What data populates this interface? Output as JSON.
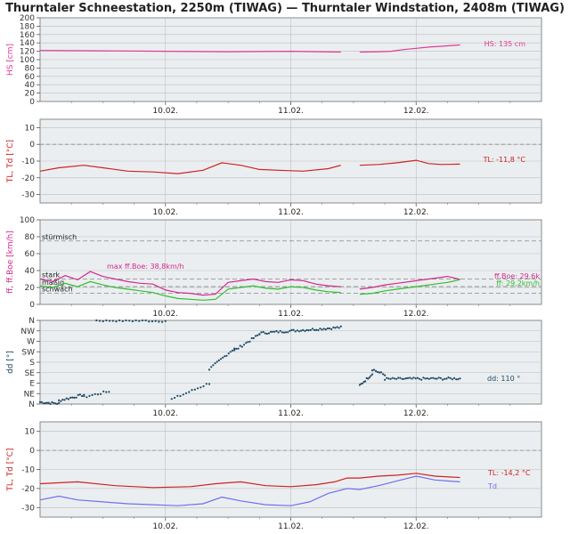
{
  "title": "Thurntaler Schneestation, 2250m (TIWAG) — Thurntaler Windstation, 2408m (TIWAG)",
  "colors": {
    "panel_bg": "#ebeef0",
    "grid": "#bdbdbd",
    "snow": "#e0399a",
    "temp": "#cc2222",
    "dew": "#6f6ff0",
    "wind_gust": "#d42a8c",
    "wind_mean": "#2fbf2f",
    "wind_dir": "#1c4a66"
  },
  "chart_data": [
    {
      "id": "snow",
      "type": "line",
      "ylabel": "HS [cm]",
      "ylim": [
        0,
        200
      ],
      "yticks": [
        0,
        20,
        40,
        60,
        80,
        100,
        120,
        140,
        160,
        180,
        200
      ],
      "xlim": [
        0,
        4
      ],
      "xticks": [
        {
          "x": 1,
          "label": "10.02."
        },
        {
          "x": 2,
          "label": "11.02."
        },
        {
          "x": 3,
          "label": "12.02."
        }
      ],
      "series": [
        {
          "name": "HS",
          "color": "#e0399a",
          "x": [
            0,
            0.5,
            1.0,
            1.5,
            2.0,
            2.4,
            2.45,
            2.55,
            2.7,
            2.8,
            2.9,
            3.0,
            3.1,
            3.2,
            3.3,
            3.35
          ],
          "y": [
            122,
            121,
            120,
            119,
            120,
            118,
            null,
            118,
            119,
            120,
            124,
            127,
            130,
            132,
            134,
            135
          ]
        }
      ],
      "annotations": [
        {
          "text": "HS: 135 cm",
          "color": "#e0399a"
        }
      ]
    },
    {
      "id": "temp1",
      "type": "line",
      "ylabel": "TL, Td [°C]",
      "ylim": [
        -35,
        15
      ],
      "yticks": [
        -30,
        -20,
        -10,
        0,
        10
      ],
      "xlim": [
        0,
        4
      ],
      "xticks": [
        {
          "x": 1,
          "label": "10.02."
        },
        {
          "x": 2,
          "label": "11.02."
        },
        {
          "x": 3,
          "label": "12.02."
        }
      ],
      "series": [
        {
          "name": "TL",
          "color": "#cc2222",
          "x": [
            0,
            0.15,
            0.35,
            0.5,
            0.7,
            0.9,
            1.1,
            1.3,
            1.45,
            1.6,
            1.75,
            1.9,
            2.1,
            2.3,
            2.4,
            2.45,
            2.55,
            2.7,
            2.85,
            3.0,
            3.1,
            3.2,
            3.35
          ],
          "y": [
            -16,
            -14,
            -12.5,
            -14,
            -16,
            -16.5,
            -17.5,
            -15.5,
            -11,
            -12.5,
            -15,
            -15.5,
            -16,
            -14.5,
            -12.5,
            null,
            -12.5,
            -12,
            -11,
            -9.5,
            -11.5,
            -12,
            -11.8
          ]
        }
      ],
      "zero_line": true,
      "annotations": [
        {
          "text": "TL: -11,8 °C",
          "color": "#cc2222"
        }
      ]
    },
    {
      "id": "wind",
      "type": "line",
      "ylabel": "ff, ff.Boe [km/h]",
      "ylim": [
        0,
        100
      ],
      "yticks": [
        0,
        20,
        40,
        60,
        80,
        100
      ],
      "xlim": [
        0,
        4
      ],
      "xticks": [
        {
          "x": 1,
          "label": "10.02."
        },
        {
          "x": 2,
          "label": "11.02."
        },
        {
          "x": 3,
          "label": "12.02."
        }
      ],
      "ref_lines": [
        {
          "y": 75,
          "label": "stürmisch"
        },
        {
          "y": 30,
          "label": "stark"
        },
        {
          "y": 21,
          "label": "mäßig"
        },
        {
          "y": 13,
          "label": "schwach"
        }
      ],
      "series": [
        {
          "name": "ff.Boe",
          "color": "#d42a8c",
          "x": [
            0,
            0.1,
            0.2,
            0.3,
            0.4,
            0.5,
            0.6,
            0.7,
            0.8,
            0.9,
            1.0,
            1.1,
            1.2,
            1.3,
            1.4,
            1.5,
            1.6,
            1.7,
            1.8,
            1.9,
            2.0,
            2.1,
            2.2,
            2.3,
            2.4,
            2.45,
            2.55,
            2.65,
            2.75,
            2.85,
            2.95,
            3.05,
            3.15,
            3.25,
            3.35
          ],
          "y": [
            30,
            27,
            34,
            29,
            38.8,
            33,
            30,
            27,
            25,
            24,
            17,
            14,
            13,
            11,
            12,
            26,
            28,
            30,
            27,
            26,
            29,
            28,
            24,
            22,
            21,
            null,
            18,
            20,
            23,
            25,
            27,
            29,
            31,
            33,
            29.6
          ]
        },
        {
          "name": "ff",
          "color": "#2fbf2f",
          "x": [
            0,
            0.1,
            0.2,
            0.3,
            0.4,
            0.5,
            0.6,
            0.7,
            0.8,
            0.9,
            1.0,
            1.1,
            1.2,
            1.3,
            1.4,
            1.5,
            1.6,
            1.7,
            1.8,
            1.9,
            2.0,
            2.1,
            2.2,
            2.3,
            2.4,
            2.45,
            2.55,
            2.65,
            2.75,
            2.85,
            2.95,
            3.05,
            3.15,
            3.25,
            3.35
          ],
          "y": [
            22,
            20,
            25,
            21,
            27,
            23,
            20,
            18,
            16,
            14,
            10,
            7,
            6,
            5,
            6,
            18,
            20,
            22,
            19,
            18,
            21,
            20,
            17,
            15,
            14,
            null,
            12,
            13,
            16,
            18,
            20,
            22,
            24,
            26,
            29.2
          ]
        }
      ],
      "annotations": [
        {
          "text": "max ff.Boe: 38,8km/h",
          "color": "#d42a8c"
        },
        {
          "text": "ff.Boe: 29,6k",
          "color": "#d42a8c"
        },
        {
          "text": "ff: 29,2km/h",
          "color": "#2fbf2f"
        }
      ]
    },
    {
      "id": "winddir",
      "type": "scatter",
      "ylabel": "dd [°]",
      "ylim": [
        0,
        360
      ],
      "yticks": [
        {
          "v": 0,
          "label": "N"
        },
        {
          "v": 45,
          "label": "NE"
        },
        {
          "v": 90,
          "label": "E"
        },
        {
          "v": 135,
          "label": "SE"
        },
        {
          "v": 180,
          "label": "S"
        },
        {
          "v": 225,
          "label": "SW"
        },
        {
          "v": 270,
          "label": "W"
        },
        {
          "v": 315,
          "label": "NW"
        },
        {
          "v": 360,
          "label": "N"
        }
      ],
      "xlim": [
        0,
        4
      ],
      "xticks": [
        {
          "x": 1,
          "label": "10.02."
        },
        {
          "x": 2,
          "label": "11.02."
        },
        {
          "x": 3,
          "label": "12.02."
        }
      ],
      "segments": [
        {
          "x0": 0.0,
          "x1": 0.15,
          "y0": 8,
          "y1": 2,
          "n": 12
        },
        {
          "x0": 0.15,
          "x1": 0.35,
          "y0": 15,
          "y1": 40,
          "n": 14
        },
        {
          "x0": 0.35,
          "x1": 0.55,
          "y0": 30,
          "y1": 55,
          "n": 10
        },
        {
          "x0": 0.45,
          "x1": 1.0,
          "y0": 360,
          "y1": 358,
          "n": 22
        },
        {
          "x0": 1.05,
          "x1": 1.35,
          "y0": 20,
          "y1": 90,
          "n": 14
        },
        {
          "x0": 1.35,
          "x1": 1.55,
          "y0": 150,
          "y1": 240,
          "n": 14
        },
        {
          "x0": 1.55,
          "x1": 1.75,
          "y0": 230,
          "y1": 300,
          "n": 14
        },
        {
          "x0": 1.75,
          "x1": 2.4,
          "y0": 305,
          "y1": 330,
          "n": 44
        },
        {
          "x0": 2.55,
          "x1": 2.65,
          "y0": 80,
          "y1": 130,
          "n": 10
        },
        {
          "x0": 2.65,
          "x1": 2.75,
          "y0": 150,
          "y1": 125,
          "n": 8
        },
        {
          "x0": 2.75,
          "x1": 3.35,
          "y0": 108,
          "y1": 110,
          "n": 40
        }
      ],
      "color": "#1c4a66",
      "annotations": [
        {
          "text": "dd: 110 °",
          "color": "#1c4a66"
        }
      ]
    },
    {
      "id": "temp2",
      "type": "line",
      "ylabel": "TL, Td [°C]",
      "ylim": [
        -35,
        15
      ],
      "yticks": [
        -30,
        -20,
        -10,
        0,
        10
      ],
      "xlim": [
        0,
        4
      ],
      "xticks": [
        {
          "x": 1,
          "label": "10.02."
        },
        {
          "x": 2,
          "label": "11.02."
        },
        {
          "x": 3,
          "label": "12.02."
        }
      ],
      "zero_line": true,
      "series": [
        {
          "name": "TL",
          "color": "#cc2222",
          "x": [
            0,
            0.3,
            0.6,
            0.9,
            1.2,
            1.4,
            1.6,
            1.8,
            2.0,
            2.2,
            2.35,
            2.45,
            2.55,
            2.7,
            2.85,
            3.0,
            3.15,
            3.35
          ],
          "y": [
            -17.5,
            -16.5,
            -18.5,
            -19.5,
            -19,
            -17.5,
            -16.5,
            -18.5,
            -19,
            -18,
            -16.5,
            -14.5,
            -14.5,
            -13.5,
            -13,
            -12,
            -13.5,
            -14.2
          ]
        },
        {
          "name": "Td",
          "color": "#6f6ff0",
          "x": [
            0,
            0.15,
            0.3,
            0.5,
            0.7,
            0.9,
            1.1,
            1.3,
            1.45,
            1.6,
            1.8,
            2.0,
            2.15,
            2.3,
            2.45,
            2.55,
            2.7,
            2.85,
            3.0,
            3.15,
            3.35
          ],
          "y": [
            -26,
            -24,
            -26,
            -27,
            -28,
            -28.5,
            -29,
            -28,
            -24.5,
            -26.5,
            -28.5,
            -29,
            -27,
            -22.5,
            -20,
            -20.5,
            -18.5,
            -16,
            -13.5,
            -15.5,
            -16.5
          ]
        }
      ],
      "annotations": [
        {
          "text": "TL: -14,2 °C",
          "color": "#cc2222"
        },
        {
          "text": "Td",
          "color": "#6f6ff0"
        }
      ]
    }
  ]
}
